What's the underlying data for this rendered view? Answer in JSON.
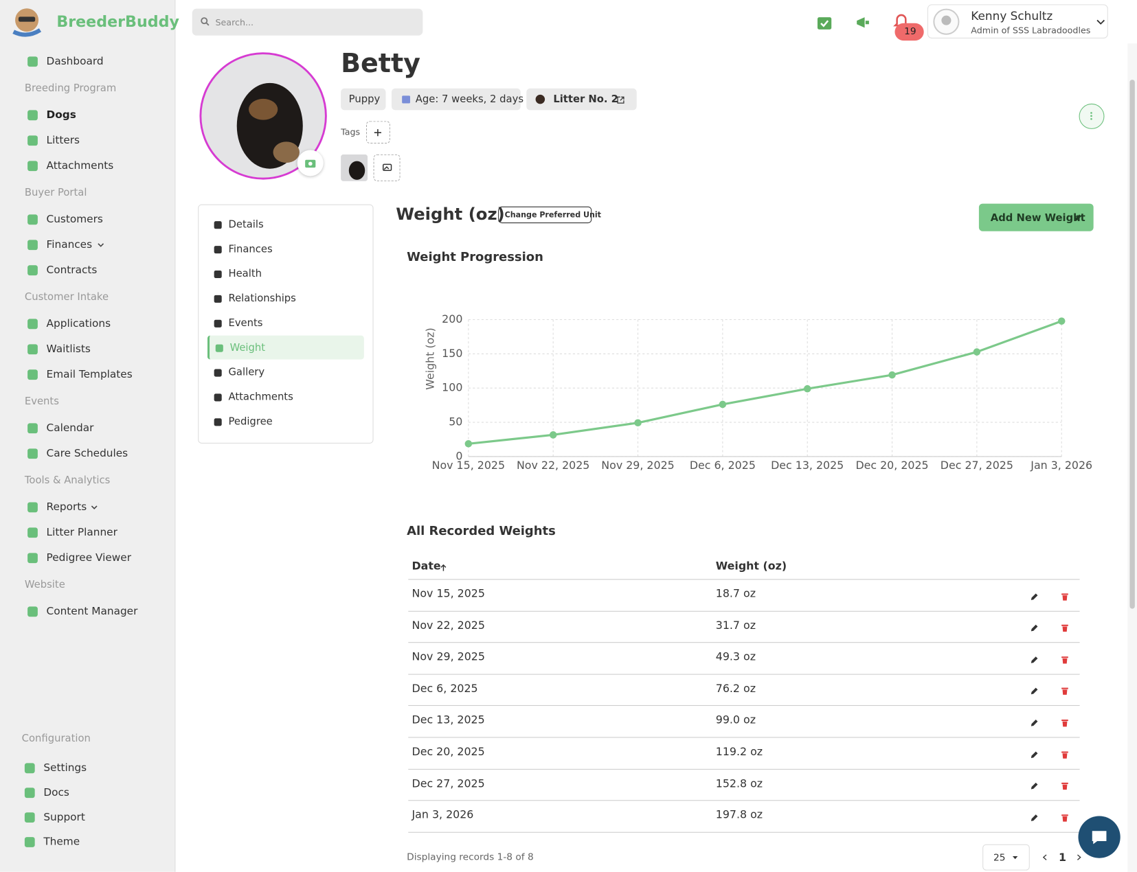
{
  "app": {
    "brand": "BreederBuddy",
    "search_placeholder": "Search...",
    "notification_count": 19,
    "user": {
      "name": "Kenny Schultz",
      "role": "Admin of SSS Labradoodles"
    }
  },
  "sidebar": {
    "items": [
      {
        "label": "Dashboard"
      },
      {
        "heading": "Breeding Program"
      },
      {
        "label": "Dogs",
        "active": true
      },
      {
        "label": "Litters"
      },
      {
        "label": "Attachments"
      },
      {
        "heading": "Buyer Portal"
      },
      {
        "label": "Customers"
      },
      {
        "label": "Finances",
        "dropdown": true
      },
      {
        "label": "Contracts"
      },
      {
        "heading": "Customer Intake"
      },
      {
        "label": "Applications"
      },
      {
        "label": "Waitlists"
      },
      {
        "label": "Email Templates"
      },
      {
        "heading": "Events"
      },
      {
        "label": "Calendar"
      },
      {
        "label": "Care Schedules"
      },
      {
        "heading": "Tools & Analytics"
      },
      {
        "label": "Reports",
        "dropdown": true
      },
      {
        "label": "Litter Planner"
      },
      {
        "label": "Pedigree Viewer"
      },
      {
        "heading": "Website"
      },
      {
        "label": "Content Manager"
      }
    ],
    "footer": {
      "heading": "Configuration",
      "items": [
        "Settings",
        "Docs",
        "Support",
        "Theme"
      ]
    }
  },
  "profile": {
    "name": "Betty",
    "chips": [
      "Puppy",
      "Age: 7 weeks, 2 days",
      "Litter No. 2"
    ],
    "tags_label": "Tags"
  },
  "tabs": [
    "Details",
    "Finances",
    "Health",
    "Relationships",
    "Events",
    "Weight",
    "Gallery",
    "Attachments",
    "Pedigree"
  ],
  "weight": {
    "heading": "Weight (oz)",
    "unit_button": "Change Preferred Unit",
    "add_button": "Add New Weight"
  },
  "chart_data": {
    "type": "line",
    "title": "Weight Progression",
    "y_label": "Weight (oz)",
    "categories": [
      "Nov 15, 2025",
      "Nov 22, 2025",
      "Nov 29, 2025",
      "Dec 6, 2025",
      "Dec 13, 2025",
      "Dec 20, 2025",
      "Dec 27, 2025",
      "Jan 3, 2026"
    ],
    "values": [
      18.7,
      31.7,
      49.3,
      76.2,
      99.0,
      119.2,
      152.8,
      197.8
    ],
    "color": "#7cc98a",
    "ylim": [
      0,
      200
    ],
    "yticks": [
      0,
      50,
      100,
      150,
      200
    ],
    "grid": true
  },
  "table": {
    "title": "All Recorded Weights",
    "columns": [
      "Date",
      "Weight (oz)"
    ],
    "rows": [
      [
        "Nov 15, 2025",
        "18.7 oz"
      ],
      [
        "Nov 22, 2025",
        "31.7 oz"
      ],
      [
        "Nov 29, 2025",
        "49.3 oz"
      ],
      [
        "Dec 6, 2025",
        "76.2 oz"
      ],
      [
        "Dec 13, 2025",
        "99.0 oz"
      ],
      [
        "Dec 20, 2025",
        "119.2 oz"
      ],
      [
        "Dec 27, 2025",
        "152.8 oz"
      ],
      [
        "Jan 3, 2026",
        "197.8 oz"
      ]
    ],
    "footer": "Displaying records 1-8 of 8",
    "page_size": 25,
    "page": 1
  }
}
